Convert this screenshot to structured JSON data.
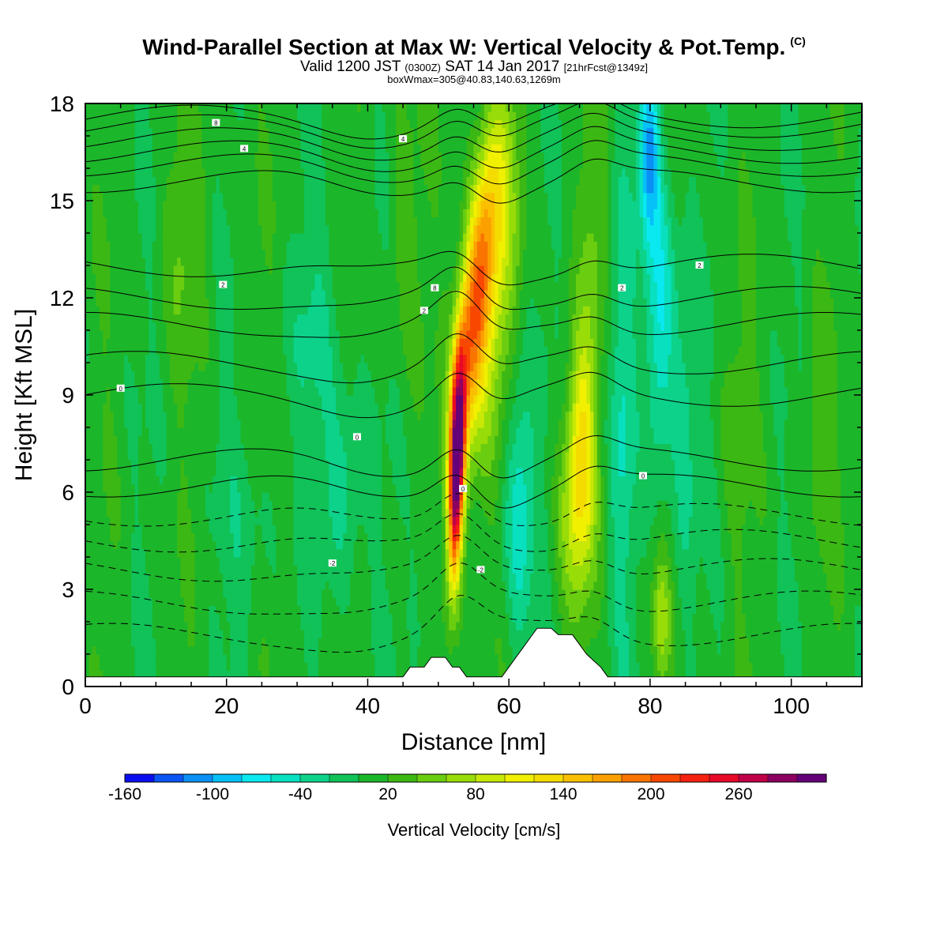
{
  "title": {
    "line1": "Wind-Parallel Section at Max W: Vertical Velocity & Pot.Temp.",
    "line1_tag": "(C)",
    "line2_a": "Valid 1200 JST",
    "line2_b": "(0300Z)",
    "line2_c": "SAT 14 Jan 2017",
    "line2_d": "[21hrFcst@1349z]",
    "line3": "boxWmax=305@40.83,140.63,1269m"
  },
  "chart_data": {
    "type": "heatmap",
    "xlabel": "Distance [nm]",
    "ylabel": "Height [Kft MSL]",
    "xlim": [
      0,
      110
    ],
    "ylim": [
      0,
      18
    ],
    "xticks": [
      0,
      20,
      40,
      60,
      80,
      100
    ],
    "yticks": [
      0,
      3,
      6,
      9,
      12,
      15,
      18
    ],
    "colorbar": {
      "label": "Vertical Velocity [cm/s]",
      "tick_labels": [
        "-160",
        "-100",
        "-40",
        "20",
        "80",
        "140",
        "200",
        "260"
      ],
      "tick_values": [
        -160,
        -100,
        -40,
        20,
        80,
        140,
        200,
        260
      ],
      "levels": [
        -160,
        -140,
        -120,
        -100,
        -80,
        -60,
        -40,
        -20,
        0,
        20,
        40,
        60,
        80,
        100,
        120,
        140,
        160,
        180,
        200,
        220,
        240,
        260,
        280,
        300
      ],
      "colors": [
        "#0a0ff0",
        "#0b55f5",
        "#0a8ff5",
        "#06c0f8",
        "#0ae8f0",
        "#08e0c0",
        "#0cd28a",
        "#10c258",
        "#1cb62a",
        "#3cb814",
        "#6acd10",
        "#98dc08",
        "#c8e806",
        "#f0f000",
        "#f4dc00",
        "#fac000",
        "#fca000",
        "#fa7400",
        "#f84800",
        "#f42010",
        "#e80828",
        "#c00048",
        "#8c0060",
        "#640078"
      ]
    },
    "terrain": [
      [
        0,
        0
      ],
      [
        45,
        0
      ],
      [
        46,
        0.6
      ],
      [
        48,
        0.6
      ],
      [
        49,
        0.9
      ],
      [
        51,
        0.9
      ],
      [
        52,
        0.6
      ],
      [
        53,
        0.6
      ],
      [
        54,
        0.3
      ],
      [
        59,
        0.3
      ],
      [
        60,
        0.6
      ],
      [
        61,
        0.9
      ],
      [
        62,
        1.2
      ],
      [
        63,
        1.5
      ],
      [
        64,
        1.8
      ],
      [
        66,
        1.8
      ],
      [
        67,
        1.6
      ],
      [
        69,
        1.6
      ],
      [
        70,
        1.3
      ],
      [
        71,
        1.0
      ],
      [
        72,
        0.8
      ],
      [
        73,
        0.6
      ],
      [
        74,
        0.3
      ],
      [
        110,
        0
      ]
    ],
    "contour_labels": [
      "8",
      "8",
      "4",
      "4",
      "2",
      "2",
      "2",
      "2",
      "0",
      "0",
      "0",
      "0",
      "-2",
      "-2"
    ]
  }
}
